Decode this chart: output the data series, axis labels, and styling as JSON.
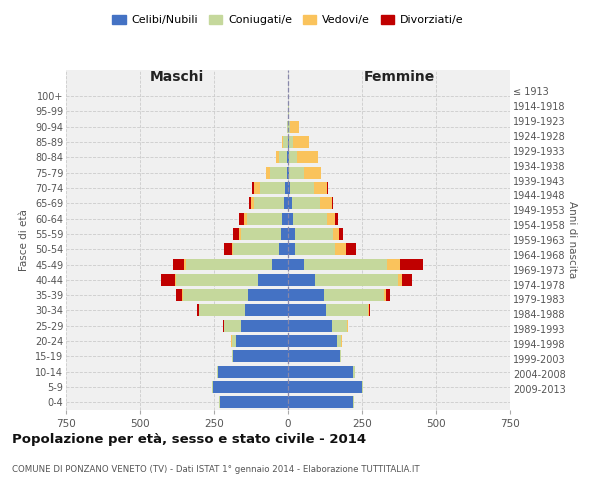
{
  "age_groups": [
    "0-4",
    "5-9",
    "10-14",
    "15-19",
    "20-24",
    "25-29",
    "30-34",
    "35-39",
    "40-44",
    "45-49",
    "50-54",
    "55-59",
    "60-64",
    "65-69",
    "70-74",
    "75-79",
    "80-84",
    "85-89",
    "90-94",
    "95-99",
    "100+"
  ],
  "birth_years": [
    "2009-2013",
    "2004-2008",
    "1999-2003",
    "1994-1998",
    "1989-1993",
    "1984-1988",
    "1979-1983",
    "1974-1978",
    "1969-1973",
    "1964-1968",
    "1959-1963",
    "1954-1958",
    "1949-1953",
    "1944-1948",
    "1939-1943",
    "1934-1938",
    "1929-1933",
    "1924-1928",
    "1919-1923",
    "1914-1918",
    "≤ 1913"
  ],
  "maschi": {
    "celibi": [
      230,
      255,
      235,
      185,
      175,
      160,
      145,
      135,
      100,
      55,
      30,
      25,
      20,
      15,
      10,
      5,
      2,
      1,
      0,
      0,
      0
    ],
    "coniugati": [
      2,
      2,
      5,
      5,
      15,
      55,
      155,
      220,
      280,
      290,
      155,
      135,
      120,
      100,
      85,
      55,
      30,
      15,
      4,
      0,
      0
    ],
    "vedovi": [
      0,
      0,
      0,
      0,
      1,
      1,
      1,
      2,
      3,
      5,
      5,
      5,
      10,
      10,
      20,
      15,
      10,
      3,
      1,
      0,
      0
    ],
    "divorziati": [
      0,
      0,
      0,
      0,
      1,
      3,
      8,
      20,
      45,
      40,
      25,
      20,
      15,
      8,
      5,
      0,
      0,
      0,
      0,
      0,
      0
    ]
  },
  "femmine": {
    "nubili": [
      220,
      250,
      220,
      175,
      165,
      150,
      130,
      120,
      90,
      55,
      25,
      22,
      18,
      12,
      8,
      5,
      3,
      2,
      1,
      1,
      0
    ],
    "coniugate": [
      2,
      2,
      5,
      5,
      15,
      50,
      140,
      205,
      280,
      280,
      135,
      130,
      115,
      95,
      80,
      50,
      28,
      15,
      5,
      1,
      0
    ],
    "vedove": [
      0,
      0,
      0,
      0,
      1,
      2,
      3,
      5,
      15,
      45,
      35,
      20,
      25,
      40,
      45,
      55,
      70,
      55,
      30,
      3,
      0
    ],
    "divorziate": [
      0,
      0,
      0,
      0,
      1,
      2,
      5,
      15,
      35,
      75,
      35,
      15,
      10,
      5,
      3,
      1,
      0,
      0,
      0,
      0,
      0
    ]
  },
  "colors": {
    "celibi": "#4472c4",
    "coniugati": "#c5d89c",
    "vedovi": "#fac35c",
    "divorziati": "#c00000"
  },
  "xlim": 750,
  "title": "Popolazione per età, sesso e stato civile - 2014",
  "subtitle": "COMUNE DI PONZANO VENETO (TV) - Dati ISTAT 1° gennaio 2014 - Elaborazione TUTTITALIA.IT",
  "ylabel_left": "Fasce di età",
  "ylabel_right": "Anni di nascita",
  "xlabel_maschi": "Maschi",
  "xlabel_femmine": "Femmine",
  "legend_labels": [
    "Celibi/Nubili",
    "Coniugati/e",
    "Vedovi/e",
    "Divorziati/e"
  ],
  "bg_color": "#f0f0f0"
}
